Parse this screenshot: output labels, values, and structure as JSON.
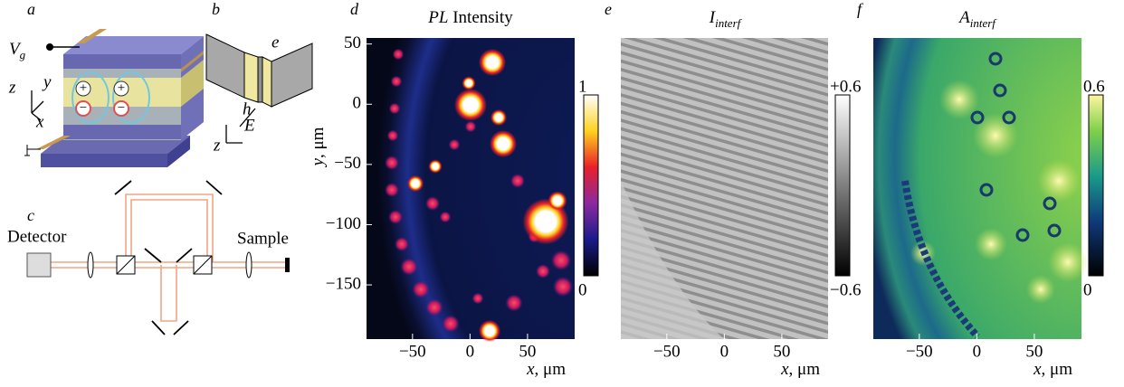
{
  "panels": {
    "a": {
      "label": "a",
      "gate": "V",
      "gate_sub": "g",
      "axes": [
        "z",
        "y",
        "x"
      ],
      "charges": [
        "+",
        "−",
        "+",
        "−"
      ]
    },
    "b": {
      "label": "b",
      "electron": "e",
      "hole": "h",
      "field": "E",
      "axis": "z"
    },
    "c": {
      "label": "c",
      "detector": "Detector",
      "sample": "Sample"
    },
    "d": {
      "label": "d",
      "title_var": "PL",
      "title_rest": " Intensity",
      "xlabel_var": "x",
      "xlabel_unit": ", μm",
      "ylabel_var": "y",
      "ylabel_unit": ", μm",
      "xlim": [
        -90,
        91
      ],
      "xticks": [
        {
          "value": -50,
          "label": "−50"
        },
        0,
        50
      ],
      "ylim": [
        -195,
        55
      ],
      "yticks": [
        50,
        0,
        {
          "value": -50,
          "label": "−50"
        },
        {
          "value": -100,
          "label": "−100"
        },
        {
          "value": -150,
          "label": "−150"
        }
      ],
      "colorbar": [
        "1",
        "0"
      ]
    },
    "e": {
      "label": "e",
      "title_var": "I",
      "title_sub": "interf",
      "xlabel_var": "x",
      "xlabel_unit": ", μm",
      "xlim": [
        -90,
        91
      ],
      "xticks": [
        {
          "value": -50,
          "label": "−50"
        },
        0,
        50
      ],
      "colorbar": [
        "+0.6",
        "−0.6"
      ]
    },
    "f": {
      "label": "f",
      "title_var": "A",
      "title_sub": "interf",
      "xlabel_var": "x",
      "xlabel_unit": ", μm",
      "xlim": [
        -90,
        91
      ],
      "xticks": [
        {
          "value": -50,
          "label": "−50"
        },
        0,
        50
      ],
      "colorbar": [
        "0.6",
        "0"
      ]
    }
  }
}
